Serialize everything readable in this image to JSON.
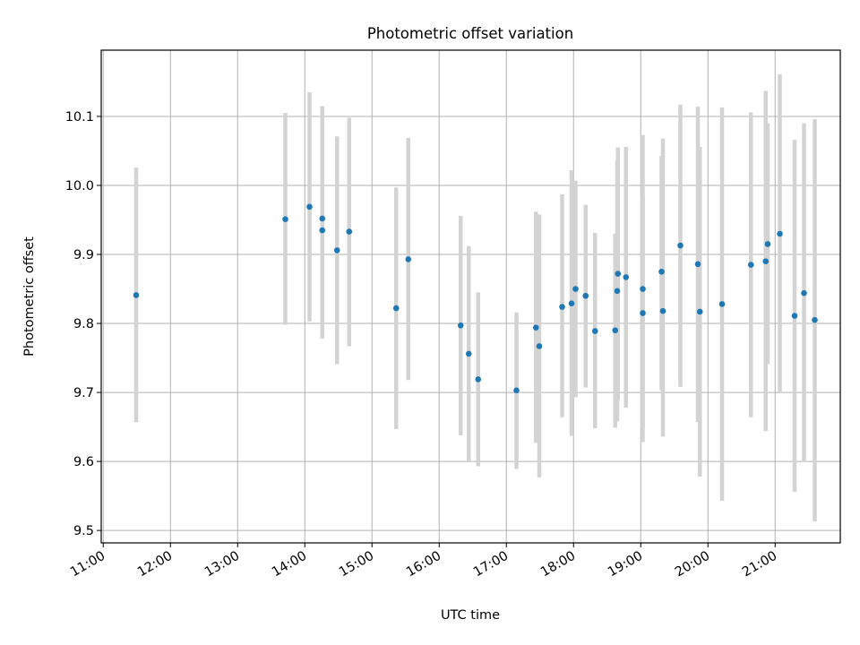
{
  "chart_data": {
    "type": "scatter",
    "title": "Photometric offset variation",
    "xlabel": "UTC time",
    "ylabel": "Photometric offset",
    "x_unit": "UTC hours",
    "xlim": [
      10.97,
      21.97
    ],
    "ylim": [
      9.482,
      10.196
    ],
    "grid": true,
    "marker_color": "#1f77b4",
    "errorbar_color": "#d3d3d3",
    "x_ticks": [
      {
        "value": 11,
        "label": "11:00"
      },
      {
        "value": 12,
        "label": "12:00"
      },
      {
        "value": 13,
        "label": "13:00"
      },
      {
        "value": 14,
        "label": "14:00"
      },
      {
        "value": 15,
        "label": "15:00"
      },
      {
        "value": 16,
        "label": "16:00"
      },
      {
        "value": 17,
        "label": "17:00"
      },
      {
        "value": 18,
        "label": "18:00"
      },
      {
        "value": 19,
        "label": "19:00"
      },
      {
        "value": 20,
        "label": "20:00"
      },
      {
        "value": 21,
        "label": "21:00"
      }
    ],
    "y_ticks": [
      {
        "value": 9.5,
        "label": "9.5"
      },
      {
        "value": 9.6,
        "label": "9.6"
      },
      {
        "value": 9.7,
        "label": "9.7"
      },
      {
        "value": 9.8,
        "label": "9.8"
      },
      {
        "value": 9.9,
        "label": "9.9"
      },
      {
        "value": 10.0,
        "label": "10.0"
      },
      {
        "value": 10.1,
        "label": "10.1"
      }
    ],
    "points": [
      {
        "x": 11.49,
        "y": 9.841,
        "err_low": 9.657,
        "err_high": 10.026
      },
      {
        "x": 13.71,
        "y": 9.951,
        "err_low": 9.798,
        "err_high": 10.105
      },
      {
        "x": 14.07,
        "y": 9.969,
        "err_low": 9.803,
        "err_high": 10.135
      },
      {
        "x": 14.26,
        "y": 9.952,
        "err_low": 9.788,
        "err_high": 10.115
      },
      {
        "x": 14.26,
        "y": 9.935,
        "err_low": 9.778,
        "err_high": 10.092
      },
      {
        "x": 14.48,
        "y": 9.906,
        "err_low": 9.741,
        "err_high": 10.071
      },
      {
        "x": 14.66,
        "y": 9.933,
        "err_low": 9.767,
        "err_high": 10.098
      },
      {
        "x": 15.36,
        "y": 9.822,
        "err_low": 9.647,
        "err_high": 9.997
      },
      {
        "x": 15.54,
        "y": 9.893,
        "err_low": 9.718,
        "err_high": 10.069
      },
      {
        "x": 16.32,
        "y": 9.797,
        "err_low": 9.638,
        "err_high": 9.956
      },
      {
        "x": 16.44,
        "y": 9.756,
        "err_low": 9.601,
        "err_high": 9.912
      },
      {
        "x": 16.58,
        "y": 9.719,
        "err_low": 9.593,
        "err_high": 9.845
      },
      {
        "x": 17.15,
        "y": 9.703,
        "err_low": 9.589,
        "err_high": 9.816
      },
      {
        "x": 17.44,
        "y": 9.794,
        "err_low": 9.627,
        "err_high": 9.962
      },
      {
        "x": 17.49,
        "y": 9.767,
        "err_low": 9.577,
        "err_high": 9.958
      },
      {
        "x": 17.83,
        "y": 9.824,
        "err_low": 9.664,
        "err_high": 9.987
      },
      {
        "x": 17.97,
        "y": 9.829,
        "err_low": 9.637,
        "err_high": 10.022
      },
      {
        "x": 18.03,
        "y": 9.85,
        "err_low": 9.693,
        "err_high": 10.007
      },
      {
        "x": 18.18,
        "y": 9.84,
        "err_low": 9.707,
        "err_high": 9.972
      },
      {
        "x": 18.32,
        "y": 9.789,
        "err_low": 9.648,
        "err_high": 9.931
      },
      {
        "x": 18.62,
        "y": 9.79,
        "err_low": 9.649,
        "err_high": 9.93
      },
      {
        "x": 18.65,
        "y": 9.847,
        "err_low": 9.658,
        "err_high": 10.036
      },
      {
        "x": 18.66,
        "y": 9.872,
        "err_low": 9.689,
        "err_high": 10.055
      },
      {
        "x": 18.78,
        "y": 9.867,
        "err_low": 9.678,
        "err_high": 10.056
      },
      {
        "x": 19.03,
        "y": 9.85,
        "err_low": 9.628,
        "err_high": 10.073
      },
      {
        "x": 19.03,
        "y": 9.815,
        "err_low": 9.648,
        "err_high": 9.983
      },
      {
        "x": 19.31,
        "y": 9.875,
        "err_low": 9.703,
        "err_high": 10.043
      },
      {
        "x": 19.33,
        "y": 9.818,
        "err_low": 9.636,
        "err_high": 10.068
      },
      {
        "x": 19.59,
        "y": 9.913,
        "err_low": 9.708,
        "err_high": 10.117
      },
      {
        "x": 19.85,
        "y": 9.886,
        "err_low": 9.657,
        "err_high": 10.114
      },
      {
        "x": 19.88,
        "y": 9.817,
        "err_low": 9.578,
        "err_high": 10.056
      },
      {
        "x": 20.21,
        "y": 9.828,
        "err_low": 9.543,
        "err_high": 10.113
      },
      {
        "x": 20.64,
        "y": 9.885,
        "err_low": 9.664,
        "err_high": 10.106
      },
      {
        "x": 20.86,
        "y": 9.89,
        "err_low": 9.644,
        "err_high": 10.137
      },
      {
        "x": 20.89,
        "y": 9.915,
        "err_low": 9.741,
        "err_high": 10.09
      },
      {
        "x": 21.07,
        "y": 9.93,
        "err_low": 9.7,
        "err_high": 10.161
      },
      {
        "x": 21.29,
        "y": 9.811,
        "err_low": 9.556,
        "err_high": 10.066
      },
      {
        "x": 21.43,
        "y": 9.844,
        "err_low": 9.599,
        "err_high": 10.09
      },
      {
        "x": 21.59,
        "y": 9.805,
        "err_low": 9.513,
        "err_high": 10.096
      }
    ]
  }
}
